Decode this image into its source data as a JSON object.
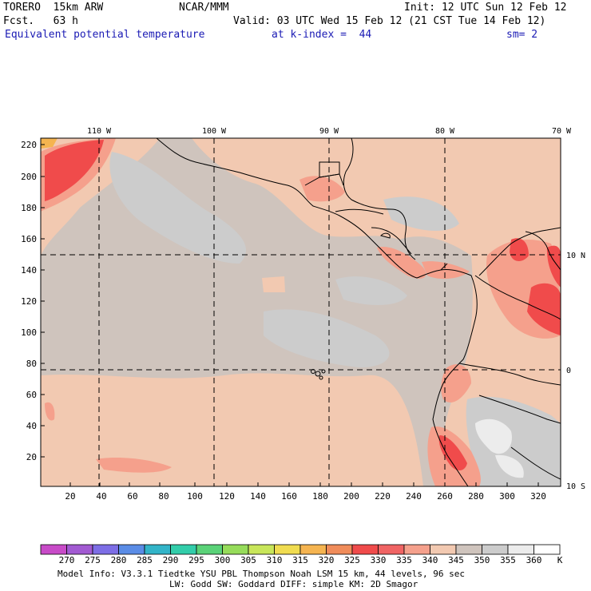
{
  "header": {
    "model": "TORERO  15km ARW",
    "org": "NCAR/MMM",
    "init": "Init: 12 UTC Sun 12 Feb 12",
    "fcst": "Fcst.   63 h",
    "valid": "Valid: 03 UTC Wed 15 Feb 12 (21 CST Tue 14 Feb 12)",
    "field": "Equivalent potential temperature",
    "level": "at k-index =  44",
    "smooth": "sm= 2"
  },
  "map": {
    "lon_labels": [
      "110 W",
      "100 W",
      "90 W",
      "80 W",
      "70 W"
    ],
    "lat_labels": [
      "10 N",
      "0",
      "10 S"
    ],
    "x_ticks": [
      "20",
      "40",
      "60",
      "80",
      "100",
      "120",
      "140",
      "160",
      "180",
      "200",
      "220",
      "240",
      "260",
      "280",
      "300",
      "320"
    ],
    "y_ticks": [
      "220",
      "200",
      "180",
      "160",
      "140",
      "120",
      "100",
      "80",
      "60",
      "40",
      "20"
    ]
  },
  "colorbar": {
    "unit": "K",
    "labels": [
      "270",
      "275",
      "280",
      "285",
      "290",
      "295",
      "300",
      "305",
      "310",
      "315",
      "320",
      "325",
      "330",
      "335",
      "340",
      "345",
      "350",
      "355",
      "360"
    ],
    "colors": [
      "#c84bc8",
      "#a25ad2",
      "#7d6ee6",
      "#5a8ce6",
      "#32b4c8",
      "#32cdaa",
      "#5ad278",
      "#96dc5a",
      "#c8e65a",
      "#f0dc50",
      "#f5b450",
      "#f08c5a",
      "#f04b4b",
      "#f06464",
      "#f5a08c",
      "#f2c9b1",
      "#cfc4bd",
      "#cccccc",
      "#ececec",
      "#ffffff"
    ]
  },
  "footer": {
    "line1": "Model Info: V3.3.1    Tiedtke YSU PBL  Thompson    Noah LSM  15 km,    44 levels,    96 sec",
    "line2": "LW: Godd SW: Goddard DIFF: simple KM: 2D Smagor"
  }
}
